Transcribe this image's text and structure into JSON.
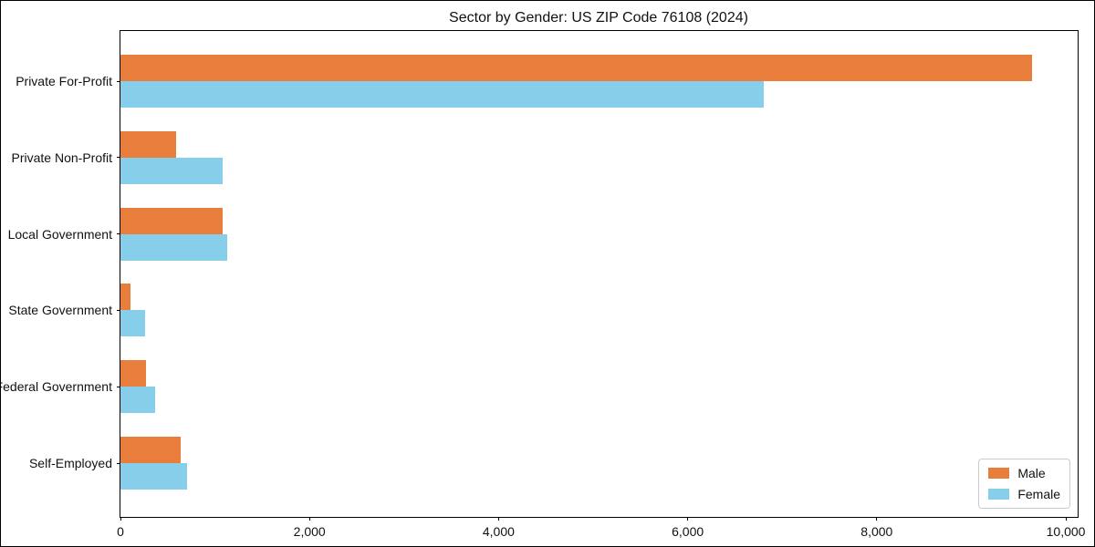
{
  "title": "Sector by Gender: US ZIP Code 76108 (2024)",
  "chart_data": {
    "type": "bar",
    "orientation": "horizontal",
    "title": "Sector by Gender: US ZIP Code 76108 (2024)",
    "xlabel": "",
    "ylabel": "",
    "categories": [
      "Private For-Profit",
      "Private Non-Profit",
      "Local Government",
      "State Government",
      "Federal Government",
      "Self-Employed"
    ],
    "series": [
      {
        "name": "Male",
        "color": "#E87D3C",
        "values": [
          9640,
          590,
          1085,
          110,
          270,
          640
        ]
      },
      {
        "name": "Female",
        "color": "#87CEEB",
        "values": [
          6800,
          1085,
          1125,
          260,
          370,
          700
        ]
      }
    ],
    "xlim": [
      0,
      10125
    ],
    "x_ticks": [
      0,
      2000,
      4000,
      6000,
      8000,
      10000
    ],
    "x_tick_labels": [
      "0",
      "2,000",
      "4,000",
      "6,000",
      "8,000",
      "10,000"
    ],
    "legend_position": "lower right",
    "grid": false,
    "axis_color": "#000000",
    "background_color": "#ffffff"
  }
}
